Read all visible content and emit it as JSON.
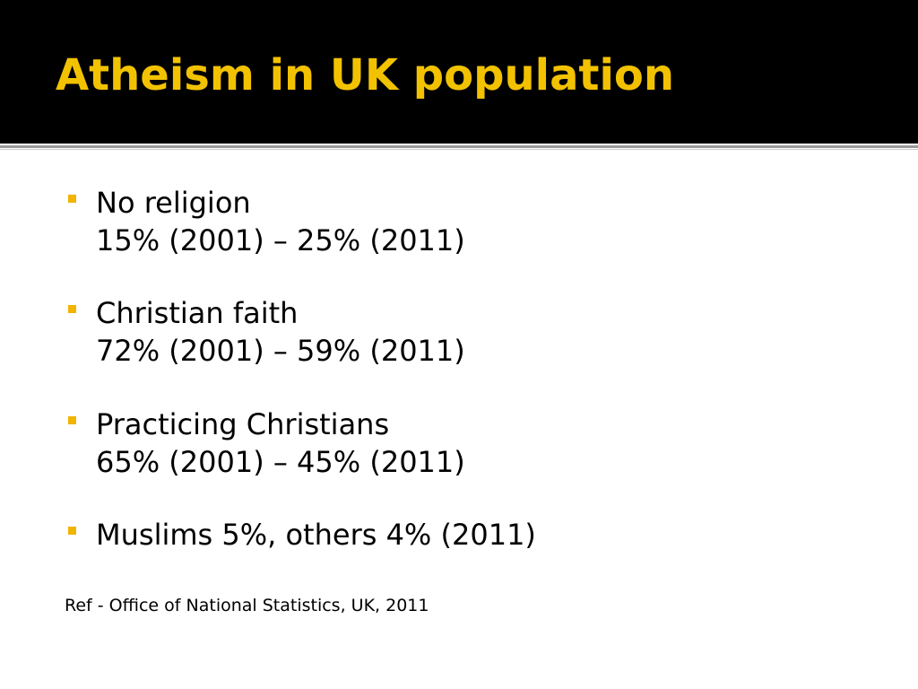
{
  "header": {
    "title": "Atheism in UK population"
  },
  "bullets": [
    {
      "lines": [
        "No religion",
        "15% (2001) – 25% (2011)"
      ]
    },
    {
      "lines": [
        "Christian faith",
        "72% (2001) – 59% (2011)"
      ]
    },
    {
      "lines": [
        "Practicing Christians",
        "65% (2001) – 45% (2011)"
      ]
    },
    {
      "lines": [
        "Muslims 5%, others 4% (2011)"
      ]
    }
  ],
  "reference": "Ref - Office of National Statistics, UK, 2011"
}
